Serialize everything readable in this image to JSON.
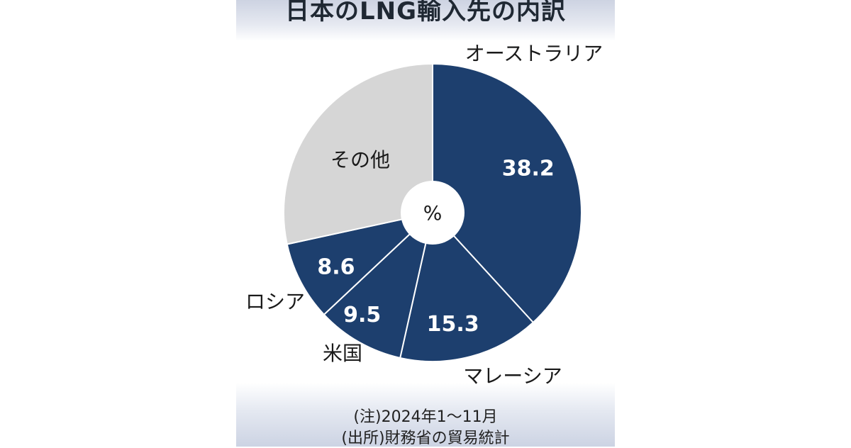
{
  "chart_data": {
    "type": "pie",
    "variant": "donut",
    "title": "日本のLNG輸入先の内訳",
    "unit_label": "%",
    "start": "12 o'clock, clockwise",
    "slices": [
      {
        "label": "オーストラリア",
        "value": 38.2,
        "value_label": "38.2",
        "color": "#1d3f6e"
      },
      {
        "label": "マレーシア",
        "value": 15.3,
        "value_label": "15.3",
        "color": "#1d3f6e"
      },
      {
        "label": "米国",
        "value": 9.5,
        "value_label": "9.5",
        "color": "#1d3f6e"
      },
      {
        "label": "ロシア",
        "value": 8.6,
        "value_label": "8.6",
        "color": "#1d3f6e"
      },
      {
        "label": "その他",
        "value": 28.4,
        "value_label": "",
        "color": "#d6d6d6"
      }
    ],
    "notes": [
      "(注)2024年1～11月",
      "(出所)財務省の貿易統計"
    ]
  }
}
